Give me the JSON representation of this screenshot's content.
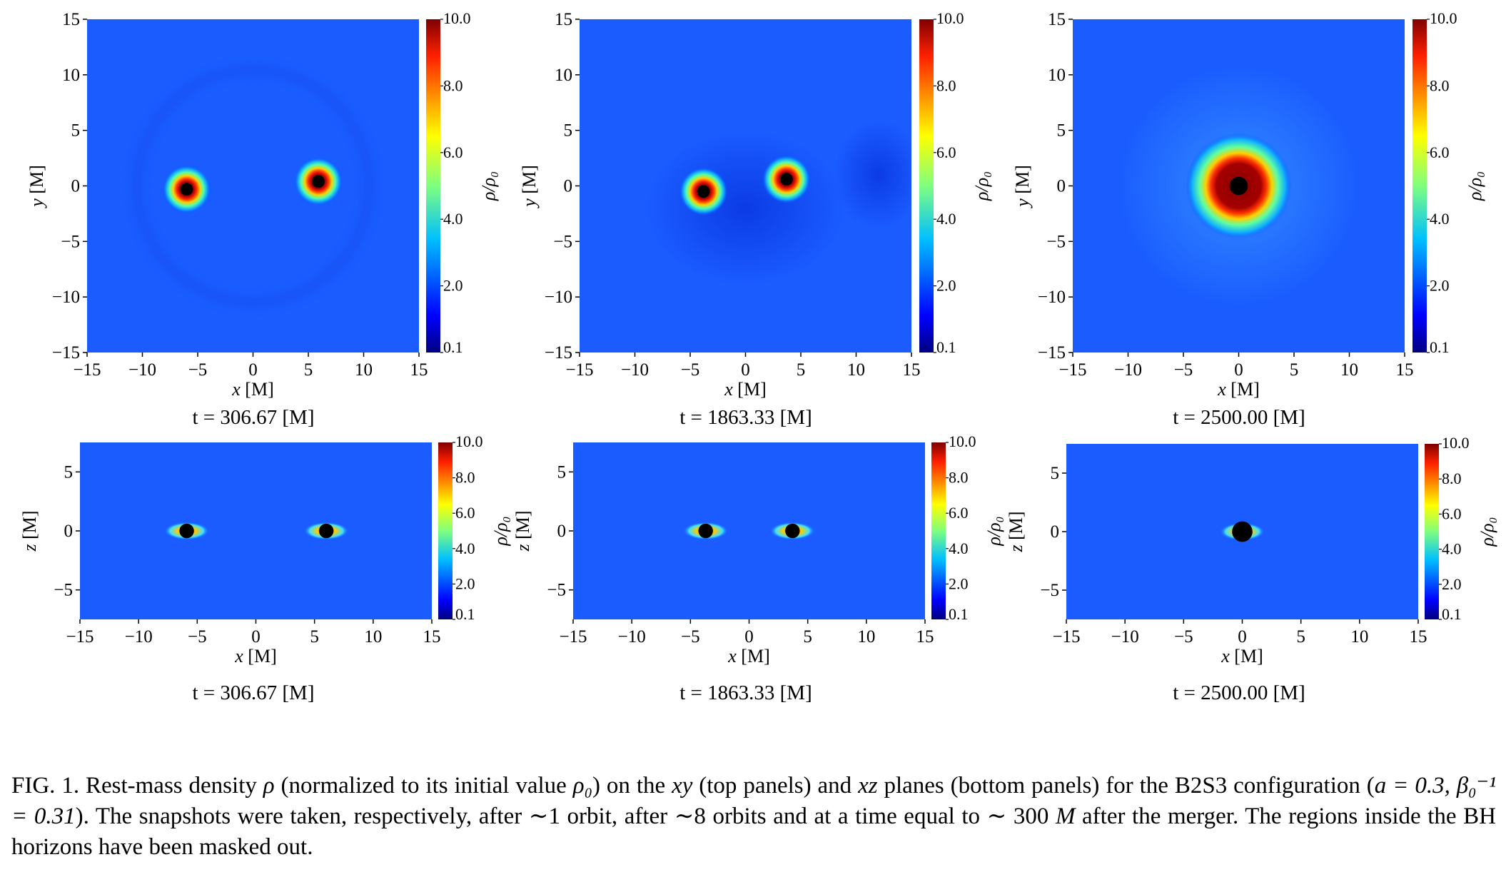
{
  "figure": {
    "panels": [
      {
        "id": "xy-1",
        "plane": "xy",
        "xlabel": "x",
        "ylabel": "y",
        "unit": "[M]",
        "time": "t = 306.67 [M]",
        "xlim": [
          -15,
          15
        ],
        "ylim": [
          -15,
          15
        ],
        "xticks": [
          "−15",
          "−10",
          "−5",
          "0",
          "5",
          "10",
          "15"
        ],
        "yticks": [
          "15",
          "10",
          "5",
          "0",
          "−5",
          "−10",
          "−15"
        ],
        "bh": [
          {
            "x": -6,
            "y": -0.3,
            "r": 0.45
          },
          {
            "x": 5.9,
            "y": 0.4,
            "r": 0.45
          }
        ]
      },
      {
        "id": "xy-2",
        "plane": "xy",
        "xlabel": "x",
        "ylabel": "y",
        "unit": "[M]",
        "time": "t = 1863.33 [M]",
        "xlim": [
          -15,
          15
        ],
        "ylim": [
          -15,
          15
        ],
        "xticks": [
          "−15",
          "−10",
          "−5",
          "0",
          "5",
          "10",
          "15"
        ],
        "yticks": [
          "15",
          "10",
          "5",
          "0",
          "−5",
          "−10",
          "−15"
        ],
        "bh": [
          {
            "x": -3.8,
            "y": -0.5,
            "r": 0.45
          },
          {
            "x": 3.7,
            "y": 0.6,
            "r": 0.45
          }
        ]
      },
      {
        "id": "xy-3",
        "plane": "xy",
        "xlabel": "x",
        "ylabel": "y",
        "unit": "[M]",
        "time": "t = 2500.00 [M]",
        "xlim": [
          -15,
          15
        ],
        "ylim": [
          -15,
          15
        ],
        "xticks": [
          "−15",
          "−10",
          "−5",
          "0",
          "5",
          "10",
          "15"
        ],
        "yticks": [
          "15",
          "10",
          "5",
          "0",
          "−5",
          "−10",
          "−15"
        ],
        "bh": [
          {
            "x": 0,
            "y": 0,
            "r": 0.7
          }
        ]
      },
      {
        "id": "xz-1",
        "plane": "xz",
        "xlabel": "x",
        "ylabel": "z",
        "unit": "[M]",
        "time": "t = 306.67 [M]",
        "xlim": [
          -15,
          15
        ],
        "ylim": [
          -7.5,
          7.5
        ],
        "xticks": [
          "−15",
          "−10",
          "−5",
          "0",
          "5",
          "10",
          "15"
        ],
        "yticks": [
          "5",
          "0",
          "−5"
        ],
        "bh": [
          {
            "x": -5.9,
            "y": 0,
            "r": 0.5
          },
          {
            "x": 6,
            "y": 0,
            "r": 0.5
          }
        ]
      },
      {
        "id": "xz-2",
        "plane": "xz",
        "xlabel": "x",
        "ylabel": "z",
        "unit": "[M]",
        "time": "t = 1863.33 [M]",
        "xlim": [
          -15,
          15
        ],
        "ylim": [
          -7.5,
          7.5
        ],
        "xticks": [
          "−15",
          "−10",
          "−5",
          "0",
          "5",
          "10",
          "15"
        ],
        "yticks": [
          "5",
          "0",
          "−5"
        ],
        "bh": [
          {
            "x": -3.7,
            "y": 0,
            "r": 0.5
          },
          {
            "x": 3.7,
            "y": 0,
            "r": 0.5
          }
        ]
      },
      {
        "id": "xz-3",
        "plane": "xz",
        "xlabel": "x",
        "ylabel": "z",
        "unit": "[M]",
        "time": "t = 2500.00 [M]",
        "xlim": [
          -15,
          15
        ],
        "ylim": [
          -7.5,
          7.5
        ],
        "xticks": [
          "−15",
          "−10",
          "−5",
          "0",
          "5",
          "10",
          "15"
        ],
        "yticks": [
          "5",
          "0",
          "−5"
        ],
        "bh": [
          {
            "x": 0,
            "y": 0,
            "r": 0.75
          }
        ]
      }
    ],
    "colorbar": {
      "label": "ρ/ρ₀",
      "ticks": [
        "10.0",
        "8.0",
        "6.0",
        "4.0",
        "2.0",
        "0.1"
      ],
      "colormap": "jet",
      "range": [
        0.1,
        10.0
      ]
    }
  },
  "caption": {
    "p1": "FIG. 1. Rest-mass density ",
    "rho": "ρ",
    "p2": " (normalized to its initial value ",
    "rho0": "ρ₀",
    "p3": ") on the ",
    "xy": "xy",
    "p4": " (top panels) and ",
    "xz": "xz",
    "p5": " planes (bottom panels) for the B2S3 configuration (",
    "params": "a = 0.3, β₀⁻¹ = 0.31",
    "p6": "). The snapshots were taken, respectively, after ∼1 orbit, after ∼8 orbits and at a time equal to ∼ 300 ",
    "M": "M",
    "p7": " after the merger. The regions inside the BH horizons have been masked out."
  }
}
